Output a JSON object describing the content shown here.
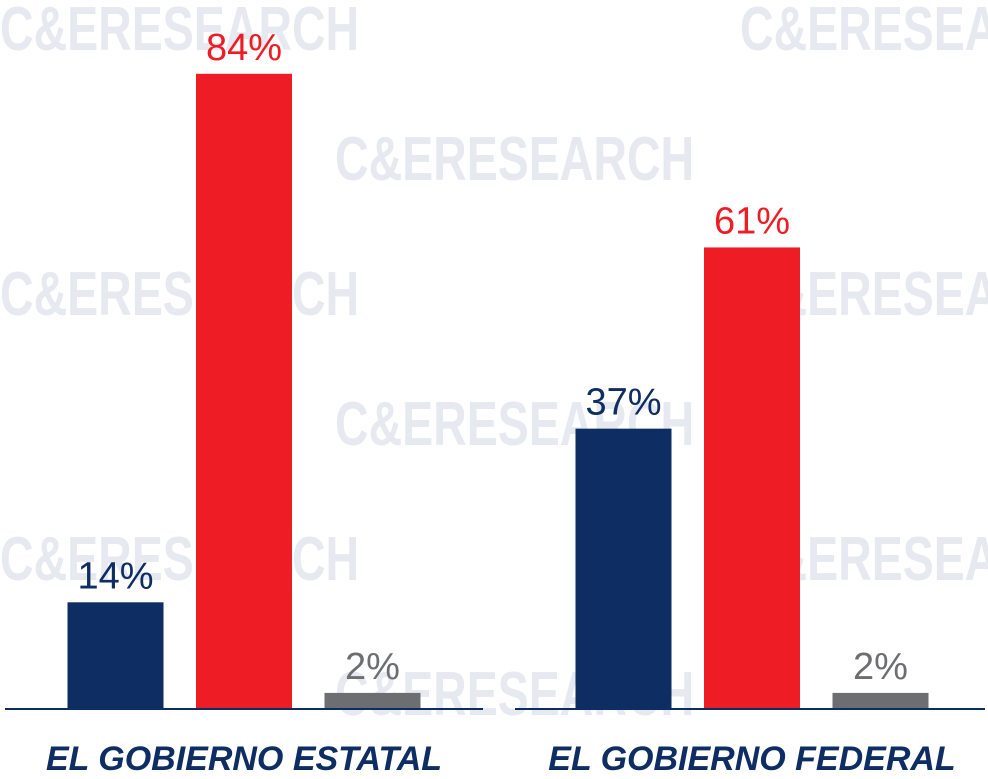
{
  "chart_data": {
    "type": "bar",
    "watermark": "C&ERESEARCH",
    "categories": [
      "EL GOBIERNO ESTATAL",
      "EL GOBIERNO FEDERAL"
    ],
    "series": [
      {
        "color": "#0e2d63",
        "values": [
          14,
          37
        ],
        "value_labels": [
          "14%",
          "37%"
        ]
      },
      {
        "color": "#ee1c25",
        "values": [
          84,
          61
        ],
        "value_labels": [
          "84%",
          "61%"
        ]
      },
      {
        "color": "#6d6e71",
        "values": [
          2,
          2
        ],
        "value_labels": [
          "2%",
          "2%"
        ]
      }
    ]
  }
}
